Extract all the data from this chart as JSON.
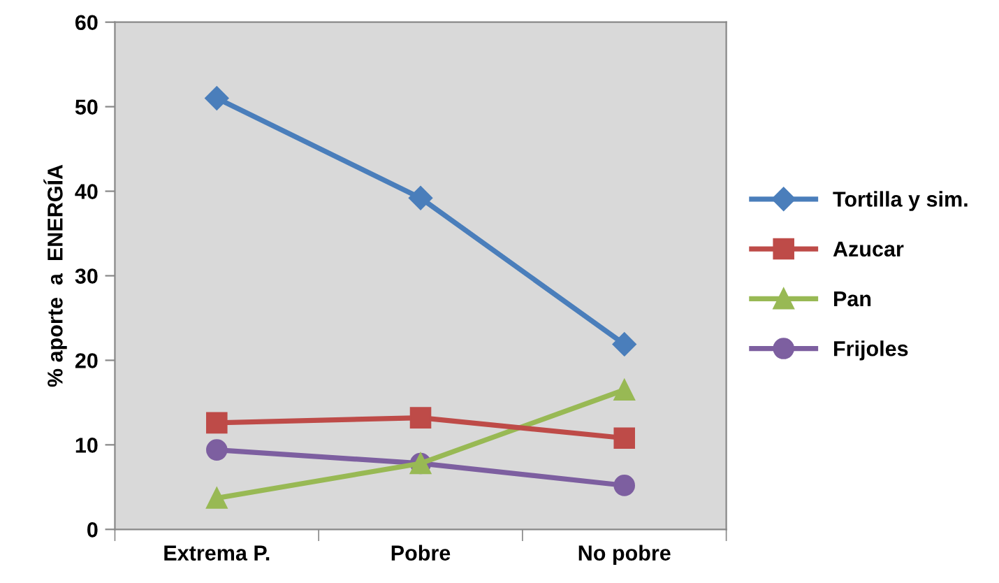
{
  "chart_data": {
    "type": "line",
    "ylabel": "% aporte  a  ENERGÍA",
    "categories": [
      "Extrema P.",
      "Pobre",
      "No pobre"
    ],
    "series": [
      {
        "name": "Tortilla y sim.",
        "color": "#4a7ebb",
        "marker": "diamond",
        "values": [
          51.0,
          39.2,
          21.9
        ]
      },
      {
        "name": "Azucar",
        "color": "#be4b48",
        "marker": "square",
        "values": [
          12.6,
          13.2,
          10.8
        ]
      },
      {
        "name": "Pan",
        "color": "#98b954",
        "marker": "triangle",
        "values": [
          3.7,
          7.8,
          16.5
        ]
      },
      {
        "name": "Frijoles",
        "color": "#7d5fa0",
        "marker": "circle",
        "values": [
          9.4,
          7.8,
          5.2
        ]
      }
    ],
    "ylim": [
      0,
      60
    ],
    "yticks": [
      0,
      10,
      20,
      30,
      40,
      50,
      60
    ],
    "grid": false,
    "legend": "right"
  }
}
